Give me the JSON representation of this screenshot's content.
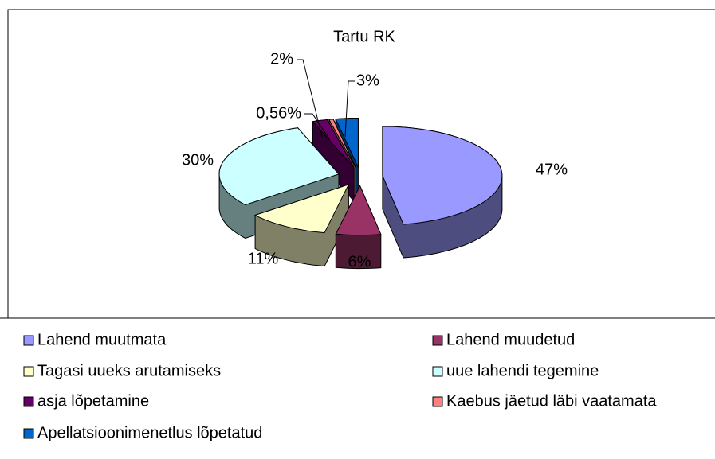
{
  "chart_data": {
    "type": "pie",
    "title": "Tartu RK",
    "categories": [
      "Lahend muutmata",
      "Lahend muudetud",
      "Tagasi uueks arutamiseks",
      "uue lahendi tegemine",
      "asja lõpetamine",
      "Kaebus jäetud läbi vaatamata",
      "Apellatsioonimenetlus lõpetatud"
    ],
    "values": [
      47,
      6,
      11,
      30,
      2,
      0.56,
      3
    ],
    "value_labels": [
      "47%",
      "6%",
      "11%",
      "30%",
      "2%",
      "0,56%",
      "3%"
    ],
    "colors": [
      "#9999ff",
      "#993366",
      "#ffffcc",
      "#ccffff",
      "#660066",
      "#ff8080",
      "#0066cc"
    ],
    "legend": "bottom"
  }
}
